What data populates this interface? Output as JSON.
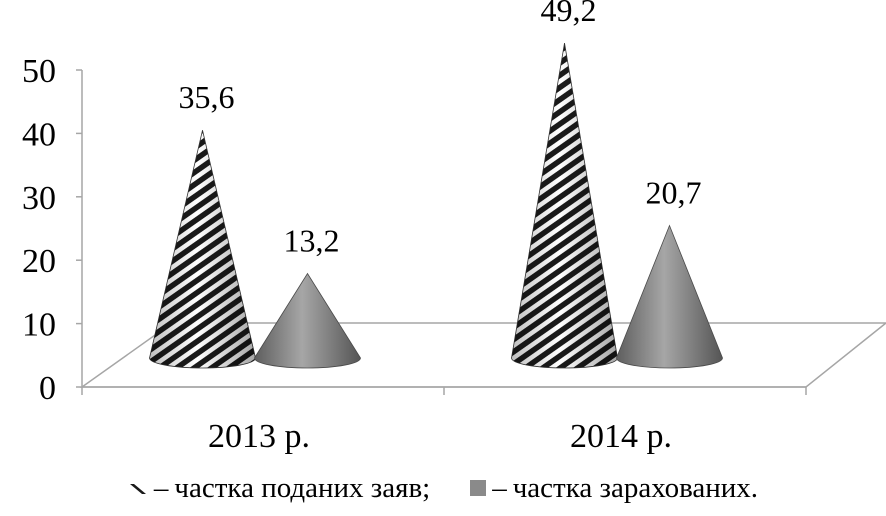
{
  "chart_data": {
    "type": "bar",
    "shape": "cone",
    "categories": [
      "2013 р.",
      "2014 р."
    ],
    "series": [
      {
        "name": "частка поданих заяв;",
        "values": [
          35.6,
          49.2
        ],
        "value_labels": [
          "35,6",
          "49,2"
        ],
        "fill": "hatched"
      },
      {
        "name": "частка зарахованих.",
        "values": [
          13.2,
          20.7
        ],
        "value_labels": [
          "13,2",
          "20,7"
        ],
        "fill": "#8a8a8a"
      }
    ],
    "yticks": [
      "0",
      "10",
      "20",
      "30",
      "40",
      "50"
    ],
    "ylim": [
      0,
      50
    ],
    "grid": false,
    "legend_position": "bottom"
  },
  "legend": {
    "dash": "–"
  }
}
